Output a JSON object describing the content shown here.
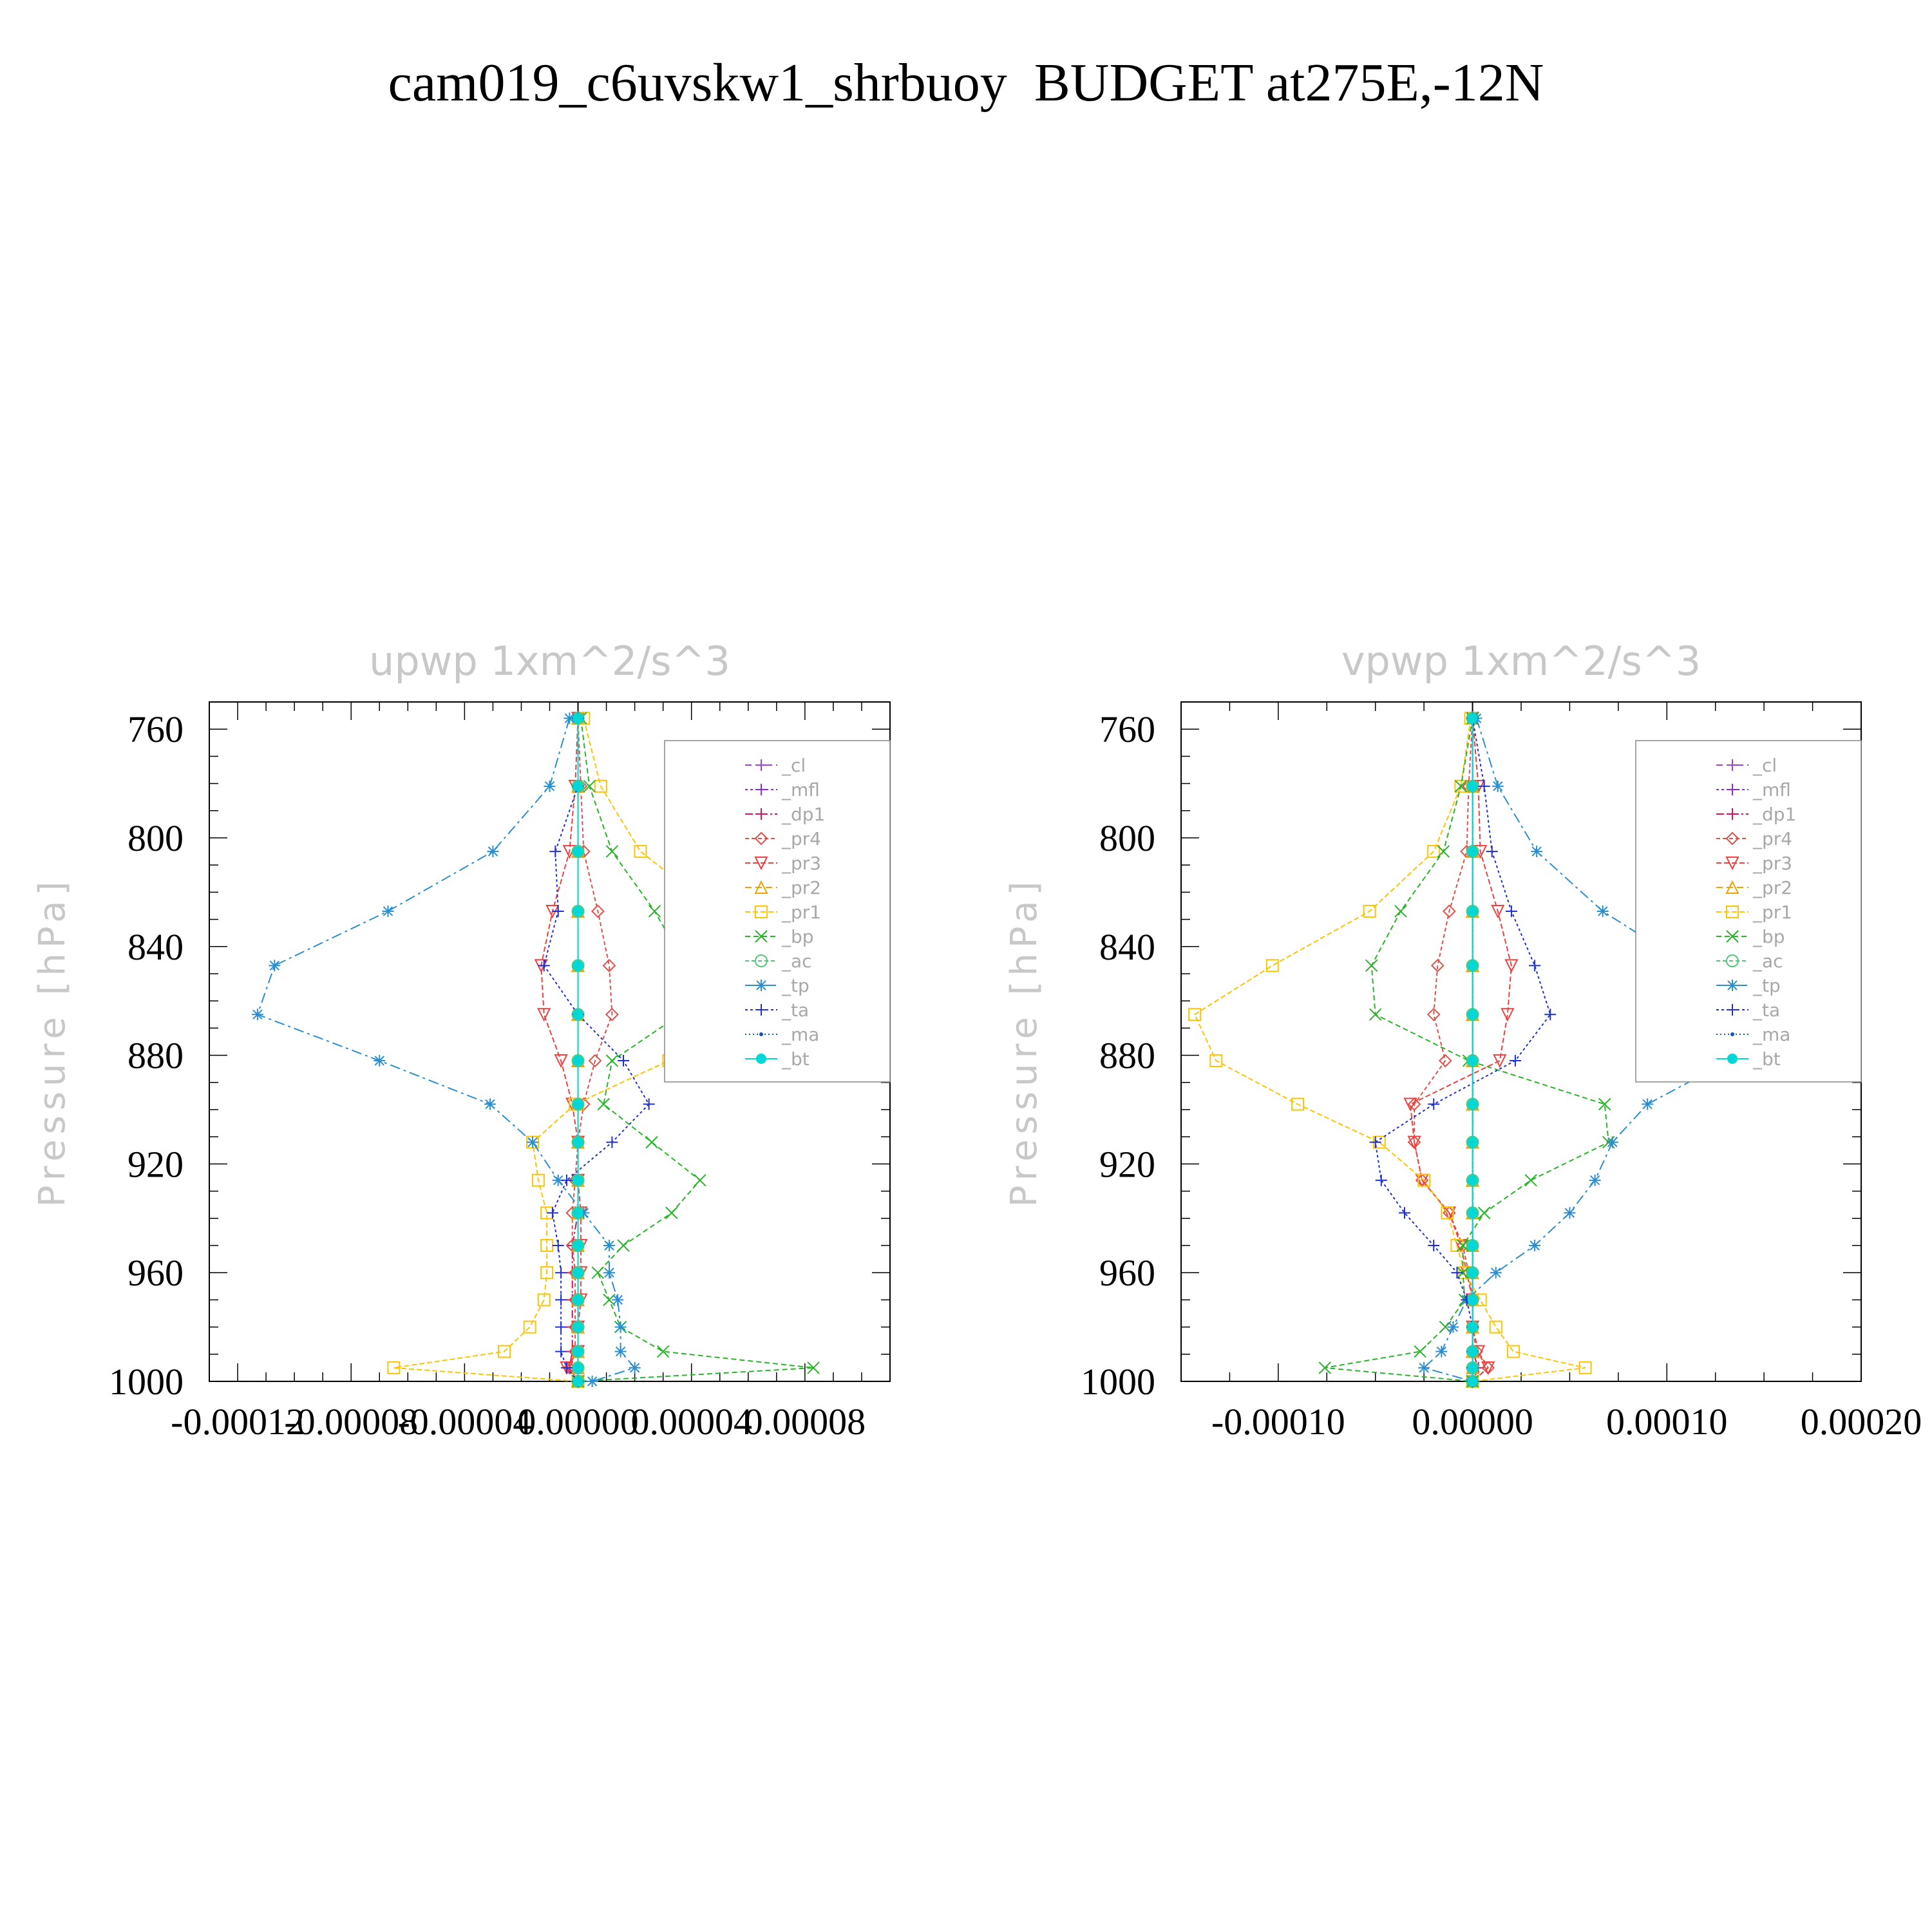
{
  "title": "cam019_c6uvskw1_shrbuoy  BUDGET at275E,-12N",
  "chart_data": [
    {
      "type": "line",
      "title": "upwp   1xm^2/s^3",
      "ylabel": "Pressure [hPa]",
      "y_reversed": true,
      "ylim": [
        750,
        1000
      ],
      "yticks": [
        760,
        800,
        840,
        880,
        920,
        960,
        1000
      ],
      "ytick_labels": [
        "760",
        "800",
        "840",
        "880",
        "920",
        "960",
        "1000"
      ],
      "xlim": [
        -0.00013,
        0.00011
      ],
      "xticks": [
        -0.00012,
        -8e-05,
        -4e-05,
        0.0,
        4e-05,
        8e-05
      ],
      "xtick_labels": [
        "-0.00012",
        "-0.00008",
        "-0.00004",
        "0.00000",
        "0.00004",
        "0.00008"
      ],
      "legend_position": "upper-right",
      "levels": [
        756,
        781,
        805,
        827,
        847,
        865,
        882,
        898,
        912,
        926,
        938,
        950,
        960,
        970,
        980,
        989,
        995,
        1000
      ],
      "series": [
        {
          "name": "_cl",
          "color": "#9a44d0",
          "values": [
            0,
            0,
            0,
            0,
            0,
            0,
            0,
            0,
            0,
            0,
            0,
            0,
            0,
            0,
            0,
            0,
            0,
            0
          ]
        },
        {
          "name": "_mfl",
          "color": "#8a2be2",
          "values": [
            0,
            0,
            0,
            0,
            0,
            0,
            0,
            0,
            0,
            0,
            0,
            0,
            0,
            0,
            0,
            0,
            0,
            0
          ]
        },
        {
          "name": "_dp1",
          "color": "#d01060",
          "values": [
            0,
            0,
            0,
            0,
            0,
            0,
            0,
            0,
            0,
            0,
            0,
            -2e-06,
            -2e-06,
            -2e-06,
            -2e-06,
            -2e-06,
            -3e-06,
            0
          ]
        },
        {
          "name": "_pr4",
          "color": "#e0504a",
          "values": [
            0,
            1e-06,
            2e-06,
            7e-06,
            1.1e-05,
            1.2e-05,
            6e-06,
            2e-06,
            0,
            -1e-06,
            -2e-06,
            -2e-06,
            -1e-06,
            -1e-06,
            -1e-06,
            -1e-06,
            -3e-06,
            0
          ]
        },
        {
          "name": "_pr3",
          "color": "#f04040",
          "values": [
            0,
            -1e-06,
            -3e-06,
            -9e-06,
            -1.3e-05,
            -1.2e-05,
            -6e-06,
            -2e-06,
            0,
            0,
            1e-06,
            1e-06,
            1e-06,
            1e-06,
            0,
            0,
            -4e-06,
            0
          ]
        },
        {
          "name": "_pr2",
          "color": "#f0a000",
          "values": [
            0,
            0,
            0,
            0,
            0,
            0,
            0,
            0,
            0,
            0,
            0,
            0,
            0,
            0,
            0,
            0,
            0,
            0
          ]
        },
        {
          "name": "_pr1",
          "color": "#ffc300",
          "values": [
            2e-06,
            8e-06,
            2.2e-05,
            4.9e-05,
            7.5e-05,
            7.2e-05,
            3.2e-05,
            -1e-06,
            -1.6e-05,
            -1.4e-05,
            -1.1e-05,
            -1.1e-05,
            -1.1e-05,
            -1.2e-05,
            -1.7e-05,
            -2.6e-05,
            -6.5e-05,
            0
          ]
        },
        {
          "name": "_bp",
          "color": "#28b428",
          "values": [
            1e-06,
            4e-06,
            1.2e-05,
            2.7e-05,
            3.8e-05,
            3.6e-05,
            1.2e-05,
            9e-06,
            2.6e-05,
            4.3e-05,
            3.3e-05,
            1.6e-05,
            7e-06,
            1.1e-05,
            1.5e-05,
            3e-05,
            8.3e-05,
            0
          ]
        },
        {
          "name": "_ac",
          "color": "#50c878",
          "values": [
            0,
            0,
            0,
            0,
            0,
            0,
            0,
            0,
            0,
            0,
            0,
            0,
            0,
            0,
            0,
            0,
            0,
            0
          ]
        },
        {
          "name": "_tp",
          "color": "#2a8fd0",
          "values": [
            -3e-06,
            -1e-05,
            -3e-05,
            -6.7e-05,
            -0.000107,
            -0.000113,
            -7e-05,
            -3.1e-05,
            -1.6e-05,
            -7e-06,
            2e-06,
            1.1e-05,
            1.1e-05,
            1.4e-05,
            1.5e-05,
            1.5e-05,
            2e-05,
            5e-06
          ]
        },
        {
          "name": "_ta",
          "color": "#2030d0",
          "values": [
            0,
            0,
            -8e-06,
            -7e-06,
            -1.2e-05,
            0,
            1.6e-05,
            2.5e-05,
            1.2e-05,
            -4e-06,
            -9e-06,
            -7e-06,
            -6e-06,
            -6e-06,
            -6e-06,
            -6e-06,
            -4e-06,
            0
          ]
        },
        {
          "name": "_ma",
          "color": "#1050c0",
          "values": [
            0,
            0,
            0,
            0,
            0,
            0,
            0,
            0,
            0,
            0,
            0,
            0,
            0,
            0,
            0,
            0,
            0,
            0
          ]
        },
        {
          "name": "_bt",
          "color": "#00d8d8",
          "values": [
            0,
            0,
            0,
            0,
            0,
            0,
            0,
            0,
            0,
            0,
            0,
            0,
            0,
            0,
            0,
            0,
            0,
            0
          ]
        }
      ]
    },
    {
      "type": "line",
      "title": "vpwp   1xm^2/s^3",
      "ylabel": "Pressure [hPa]",
      "y_reversed": true,
      "ylim": [
        750,
        1000
      ],
      "yticks": [
        760,
        800,
        840,
        880,
        920,
        960,
        1000
      ],
      "ytick_labels": [
        "760",
        "800",
        "840",
        "880",
        "920",
        "960",
        "1000"
      ],
      "xlim": [
        -0.00015,
        0.0002
      ],
      "xticks": [
        -0.0001,
        0.0,
        0.0001,
        0.0002
      ],
      "xtick_labels": [
        "-0.00010",
        "0.00000",
        "0.00010",
        "0.00020"
      ],
      "legend_position": "upper-right",
      "levels": [
        756,
        781,
        805,
        827,
        847,
        865,
        882,
        898,
        912,
        926,
        938,
        950,
        960,
        970,
        980,
        989,
        995,
        1000
      ],
      "series": [
        {
          "name": "_cl",
          "color": "#9a44d0",
          "values": [
            0,
            0,
            0,
            0,
            0,
            0,
            0,
            0,
            0,
            0,
            0,
            0,
            0,
            0,
            0,
            0,
            0,
            0
          ]
        },
        {
          "name": "_mfl",
          "color": "#8a2be2",
          "values": [
            0,
            0,
            0,
            0,
            0,
            0,
            0,
            0,
            0,
            0,
            0,
            0,
            0,
            0,
            0,
            0,
            0,
            0
          ]
        },
        {
          "name": "_dp1",
          "color": "#d01060",
          "values": [
            0,
            0,
            0,
            0,
            0,
            0,
            0,
            0,
            0,
            0,
            0,
            0,
            0,
            0,
            0,
            0,
            3e-06,
            0
          ]
        },
        {
          "name": "_pr4",
          "color": "#e0504a",
          "values": [
            0,
            -2e-06,
            -3e-06,
            -1.2e-05,
            -1.8e-05,
            -2e-05,
            -1.4e-05,
            -3e-05,
            -3e-05,
            -2.6e-05,
            -1.2e-05,
            -5e-06,
            -2e-06,
            0,
            0,
            2e-06,
            8e-06,
            0
          ]
        },
        {
          "name": "_pr3",
          "color": "#f04040",
          "values": [
            0,
            3e-06,
            4e-06,
            1.3e-05,
            2e-05,
            1.8e-05,
            1.4e-05,
            -3.2e-05,
            -3e-05,
            -2.6e-05,
            -1.2e-05,
            -6e-06,
            -3e-06,
            0,
            0,
            3e-06,
            8e-06,
            0
          ]
        },
        {
          "name": "_pr2",
          "color": "#f0a000",
          "values": [
            0,
            0,
            0,
            0,
            0,
            0,
            0,
            0,
            0,
            0,
            0,
            0,
            0,
            0,
            0,
            0,
            0,
            0
          ]
        },
        {
          "name": "_pr1",
          "color": "#ffc300",
          "values": [
            -1e-06,
            -6e-06,
            -2e-05,
            -5.3e-05,
            -0.000103,
            -0.000143,
            -0.000132,
            -9e-05,
            -4.8e-05,
            -2.5e-05,
            -1.3e-05,
            -8e-06,
            -4e-06,
            4e-06,
            1.2e-05,
            2.1e-05,
            5.8e-05,
            0
          ]
        },
        {
          "name": "_bp",
          "color": "#28b428",
          "values": [
            0,
            -6e-06,
            -1.5e-05,
            -3.7e-05,
            -5.2e-05,
            -5e-05,
            -2e-06,
            6.8e-05,
            7e-05,
            3e-05,
            6e-06,
            -5e-06,
            -5e-06,
            -4e-06,
            -1.4e-05,
            -2.7e-05,
            -7.6e-05,
            0
          ]
        },
        {
          "name": "_ac",
          "color": "#50c878",
          "values": [
            0,
            0,
            0,
            0,
            0,
            0,
            0,
            0,
            0,
            0,
            0,
            0,
            0,
            0,
            0,
            0,
            0,
            0
          ]
        },
        {
          "name": "_tp",
          "color": "#2a8fd0",
          "values": [
            2e-06,
            1.3e-05,
            3.3e-05,
            6.7e-05,
            0.000111,
            0.00016,
            0.000132,
            9e-05,
            7.2e-05,
            6.3e-05,
            5e-05,
            3.2e-05,
            1.2e-05,
            -3e-06,
            -1e-05,
            -1.6e-05,
            -2.5e-05,
            0
          ]
        },
        {
          "name": "_ta",
          "color": "#2030d0",
          "values": [
            0,
            6e-06,
            1e-05,
            2e-05,
            3.2e-05,
            4e-05,
            2.2e-05,
            -2e-05,
            -5e-05,
            -4.7e-05,
            -3.5e-05,
            -2e-05,
            -8e-06,
            -3e-06,
            0,
            0,
            0,
            0
          ]
        },
        {
          "name": "_ma",
          "color": "#1050c0",
          "values": [
            0,
            0,
            0,
            0,
            0,
            0,
            0,
            0,
            0,
            0,
            0,
            0,
            0,
            0,
            0,
            0,
            0,
            0
          ]
        },
        {
          "name": "_bt",
          "color": "#00d8d8",
          "values": [
            0,
            0,
            0,
            0,
            0,
            0,
            0,
            0,
            0,
            0,
            0,
            0,
            0,
            0,
            0,
            0,
            0,
            0
          ]
        }
      ]
    }
  ]
}
